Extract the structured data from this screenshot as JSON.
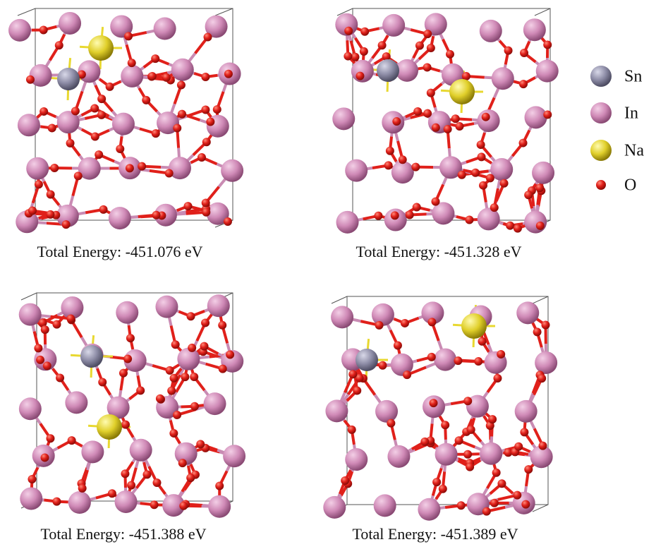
{
  "panels": [
    {
      "caption": "Total Energy: -451.076 eV"
    },
    {
      "caption": "Total Energy: -451.328 eV"
    },
    {
      "caption": "Total Energy: -451.388 eV"
    },
    {
      "caption": "Total Energy: -451.389 eV"
    }
  ],
  "legend": [
    {
      "label": "Sn"
    },
    {
      "label": "In"
    },
    {
      "label": "Na"
    },
    {
      "label": "O"
    }
  ]
}
